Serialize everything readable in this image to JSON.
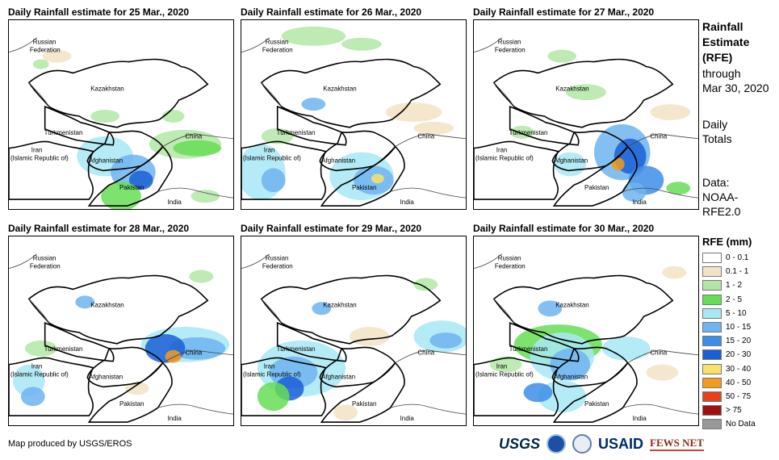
{
  "panels": [
    {
      "title": "Daily Rainfall estimate for 25 Mar., 2020"
    },
    {
      "title": "Daily Rainfall estimate for 26 Mar., 2020"
    },
    {
      "title": "Daily Rainfall estimate for 27 Mar., 2020"
    },
    {
      "title": "Daily Rainfall estimate for 28 Mar., 2020"
    },
    {
      "title": "Daily Rainfall estimate for 29 Mar., 2020"
    },
    {
      "title": "Daily Rainfall estimate for 30 Mar., 2020"
    }
  ],
  "map_labels": {
    "russia_1": "Russian",
    "russia_2": "Federation",
    "kazakhstan": "Kazakhstan",
    "turkmenistan": "Turkmenistan",
    "china": "China",
    "iran_1": "Iran",
    "iran_2": "(Islamic Republic of)",
    "afghanistan": "Afghanistan",
    "pakistan": "Pakistan",
    "india": "India"
  },
  "side": {
    "title_1": "Rainfall",
    "title_2": "Estimate",
    "title_3": "(RFE)",
    "through_1": "through",
    "through_2": "Mar 30, 2020",
    "daily_1": "Daily",
    "daily_2": "Totals",
    "data_1": "Data:",
    "data_2": "NOAA-",
    "data_3": "RFE2.0"
  },
  "legend": {
    "title": "RFE (mm)",
    "items": [
      {
        "label": "0 - 0.1",
        "color": "#ffffff"
      },
      {
        "label": "0.1 - 1",
        "color": "#f2e3c6"
      },
      {
        "label": "1 - 2",
        "color": "#b3e6a6"
      },
      {
        "label": "2 - 5",
        "color": "#66dd55"
      },
      {
        "label": "5 - 10",
        "color": "#a8e8f5"
      },
      {
        "label": "10 - 15",
        "color": "#6fb4f0"
      },
      {
        "label": "15 - 20",
        "color": "#3d8ee8"
      },
      {
        "label": "20 - 30",
        "color": "#1a5fd6"
      },
      {
        "label": "30 - 40",
        "color": "#f7e26b"
      },
      {
        "label": "40 - 50",
        "color": "#f29b1d"
      },
      {
        "label": "50 - 75",
        "color": "#e8401c"
      },
      {
        "label": "> 75",
        "color": "#a11010"
      },
      {
        "label": "No Data",
        "color": "#999999"
      }
    ]
  },
  "credit": "Map produced by USGS/EROS",
  "logos": {
    "usgs": "USGS",
    "usaid": "USAID",
    "fews": "FEWS NET"
  }
}
